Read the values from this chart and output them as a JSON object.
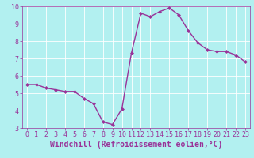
{
  "x": [
    0,
    1,
    2,
    3,
    4,
    5,
    6,
    7,
    8,
    9,
    10,
    11,
    12,
    13,
    14,
    15,
    16,
    17,
    18,
    19,
    20,
    21,
    22,
    23
  ],
  "y": [
    5.5,
    5.5,
    5.3,
    5.2,
    5.1,
    5.1,
    4.7,
    4.4,
    3.35,
    3.2,
    4.1,
    7.3,
    9.6,
    9.4,
    9.7,
    9.9,
    9.5,
    8.6,
    7.9,
    7.5,
    7.4,
    7.4,
    7.2,
    6.8
  ],
  "line_color": "#993399",
  "marker": "D",
  "marker_size": 2.0,
  "xlabel": "Windchill (Refroidissement éolien,°C)",
  "xlabel_fontsize": 7,
  "ylim": [
    3,
    10
  ],
  "xlim": [
    -0.5,
    23.5
  ],
  "yticks": [
    3,
    4,
    5,
    6,
    7,
    8,
    9,
    10
  ],
  "xticks": [
    0,
    1,
    2,
    3,
    4,
    5,
    6,
    7,
    8,
    9,
    10,
    11,
    12,
    13,
    14,
    15,
    16,
    17,
    18,
    19,
    20,
    21,
    22,
    23
  ],
  "bg_color": "#b2f0f0",
  "grid_color": "#ffffff",
  "tick_fontsize": 6,
  "line_width": 1.0,
  "spine_color": "#993399",
  "label_color": "#993399"
}
